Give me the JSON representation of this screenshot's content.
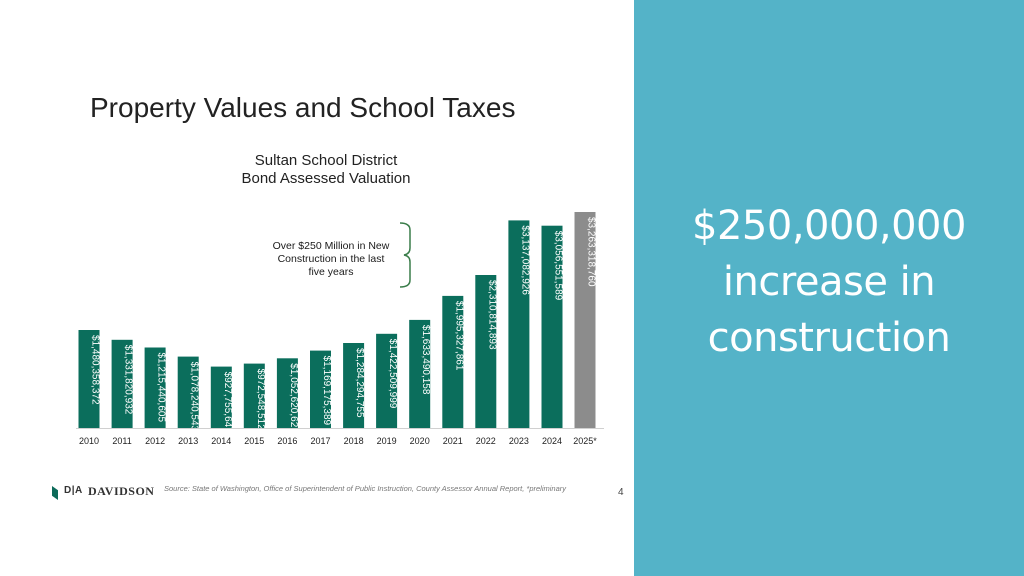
{
  "callout": {
    "lines": [
      "$250,000,000",
      "increase in",
      "construction"
    ]
  },
  "footer": {
    "logo_text": "D|A DAVIDSON",
    "logo_da": "D|A",
    "logo_word": "DAVIDSON",
    "source": "Source: State of Washington, Office of Superintendent of Public Instruction, County Assessor Annual Report, *preliminary",
    "page_number": "4"
  },
  "colors": {
    "bar": "#0b6e5c",
    "bar_highlight": "#8c8c8c",
    "panel": "#54b3c8",
    "bracket": "#3a7d4a"
  },
  "chart_data": {
    "type": "bar",
    "title": "Property Values and School Taxes",
    "subtitle": "Sultan School District\nBond Assessed Valuation",
    "xlabel": "",
    "ylabel": "",
    "grid": false,
    "legend": "none",
    "categories": [
      "2010",
      "2011",
      "2012",
      "2013",
      "2014",
      "2015",
      "2016",
      "2017",
      "2018",
      "2019",
      "2020",
      "2021",
      "2022",
      "2023",
      "2024",
      "2025*"
    ],
    "values": [
      1480358372,
      1331820932,
      1215440605,
      1078240543,
      927755647,
      972548512,
      1052620621,
      1169175389,
      1284294755,
      1422509999,
      1633490158,
      1995327861,
      2310814893,
      3137082926,
      3056551589,
      3263318760
    ],
    "data_labels": [
      "$1,480,358,372",
      "$1,331,820,932",
      "$1,215,440,605",
      "$1,078,240,543",
      "$927,755,647",
      "$972,548,512",
      "$1,052,620,621",
      "$1,169,175,389",
      "$1,284,294,755",
      "$1,422,509,999",
      "$1,633,490,158",
      "$1,995,327,861",
      "$2,310,814,893",
      "$3,137,082,926",
      "$3,056,551,589",
      "$3,263,318,760"
    ],
    "highlighted_category": "2025*",
    "annotations": [
      {
        "text": "Over $250 Million in New Construction in the last five years",
        "spans": [
          "2020",
          "2024"
        ]
      }
    ]
  }
}
